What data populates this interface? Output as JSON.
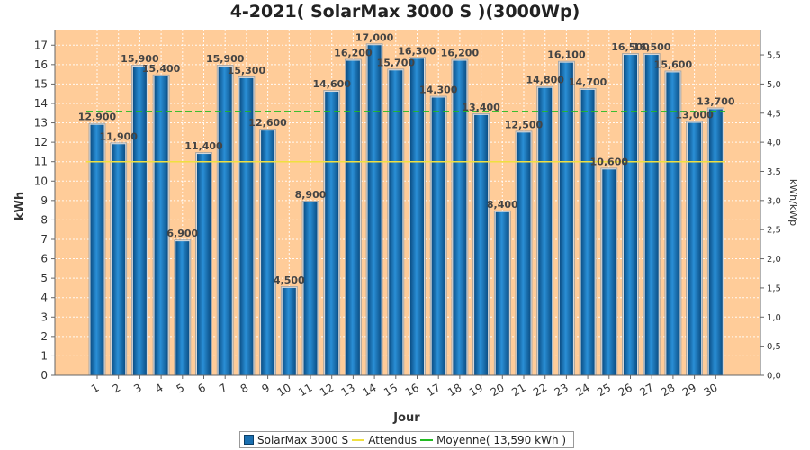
{
  "chart_data": {
    "type": "bar",
    "title": "4-2021( SolarMax 3000 S )(3000Wp)",
    "xlabel": "Jour",
    "ylabel": "kWh",
    "y2label": "kWh/kWp",
    "categories": [
      "1",
      "2",
      "3",
      "4",
      "5",
      "6",
      "7",
      "8",
      "9",
      "10",
      "11",
      "12",
      "13",
      "14",
      "15",
      "16",
      "17",
      "18",
      "19",
      "20",
      "21",
      "22",
      "23",
      "24",
      "25",
      "26",
      "27",
      "28",
      "29",
      "30"
    ],
    "series": [
      {
        "name": "SolarMax 3000 S",
        "values": [
          12.9,
          11.9,
          15.9,
          15.4,
          6.9,
          11.4,
          15.9,
          15.3,
          12.6,
          4.5,
          8.9,
          14.6,
          16.2,
          17.0,
          15.7,
          16.3,
          14.3,
          16.2,
          13.4,
          8.4,
          12.5,
          14.8,
          16.1,
          14.7,
          10.6,
          16.5,
          16.5,
          15.6,
          13.0,
          13.7
        ],
        "labels": [
          "12,900",
          "11,900",
          "15,900",
          "15,400",
          "6,900",
          "11,400",
          "15,900",
          "15,300",
          "12,600",
          "4,500",
          "8,900",
          "14,600",
          "16,200",
          "17,000",
          "15,700",
          "16,300",
          "14,300",
          "16,200",
          "13,400",
          "8,400",
          "12,500",
          "14,800",
          "16,100",
          "14,700",
          "10,600",
          "16,500",
          "16,500",
          "15,600",
          "13,000",
          "13,700"
        ],
        "color": "#1a6fb0"
      }
    ],
    "attendus": {
      "name": "Attendus",
      "value": 11.0,
      "color": "#f0e040"
    },
    "moyenne": {
      "name": "Moyenne( 13,590 kWh )",
      "value": 13.59,
      "color": "#22bb22"
    },
    "ylim": [
      0,
      17.8
    ],
    "yticks": [
      0,
      1,
      2,
      3,
      4,
      5,
      6,
      7,
      8,
      9,
      10,
      11,
      12,
      13,
      14,
      15,
      16,
      17
    ],
    "y2lim": [
      0,
      5.9333
    ],
    "y2ticks": [
      {
        "v": 0,
        "label": "0,0"
      },
      {
        "v": 0.5,
        "label": "0,5"
      },
      {
        "v": 1.0,
        "label": "1,0"
      },
      {
        "v": 1.5,
        "label": "1,5"
      },
      {
        "v": 2.0,
        "label": "2,0"
      },
      {
        "v": 2.5,
        "label": "2,5"
      },
      {
        "v": 3.0,
        "label": "3,0"
      },
      {
        "v": 3.5,
        "label": "3,5"
      },
      {
        "v": 4.0,
        "label": "4,0"
      },
      {
        "v": 4.5,
        "label": "4,5"
      },
      {
        "v": 5.0,
        "label": "5,0"
      },
      {
        "v": 5.5,
        "label": "5,5"
      }
    ],
    "plot_bg": "#ffcc99",
    "grid": true,
    "legend_position": "bottom"
  }
}
